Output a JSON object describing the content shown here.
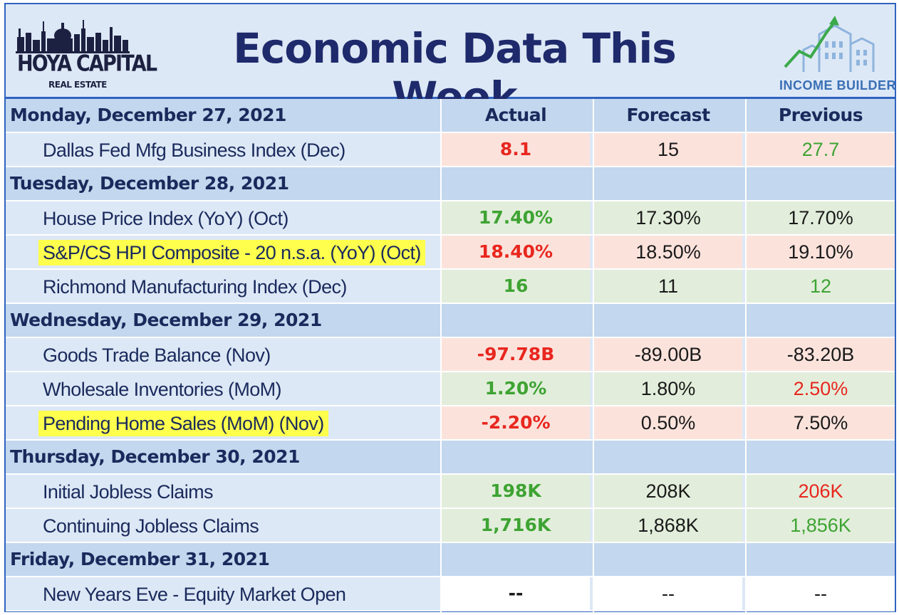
{
  "header": {
    "title": "Economic Data This Week",
    "left_logo": {
      "brand": "HOYA CAPITAL",
      "sub": "REAL ESTATE"
    },
    "right_logo": {
      "label": "INCOME BUILDER"
    }
  },
  "columns": {
    "actual": "Actual",
    "forecast": "Forecast",
    "previous": "Previous"
  },
  "days": [
    {
      "date": "Monday, December 27, 2021",
      "items": [
        {
          "label": "Dallas Fed Mfg Business Index (Dec)",
          "highlight": false,
          "actual": "8.1",
          "forecast": "15",
          "previous": "27.7",
          "actual_color": "red",
          "previous_color": "green",
          "row_bg": "red"
        }
      ]
    },
    {
      "date": "Tuesday, December 28, 2021",
      "items": [
        {
          "label": "House Price Index (YoY) (Oct)",
          "highlight": false,
          "actual": "17.40%",
          "forecast": "17.30%",
          "previous": "17.70%",
          "actual_color": "green",
          "previous_color": "dark",
          "row_bg": "green"
        },
        {
          "label": "S&P/CS HPI Composite - 20 n.s.a. (YoY) (Oct)",
          "highlight": true,
          "actual": "18.40%",
          "forecast": "18.50%",
          "previous": "19.10%",
          "actual_color": "red",
          "previous_color": "dark",
          "row_bg": "red"
        },
        {
          "label": "Richmond Manufacturing Index (Dec)",
          "highlight": false,
          "actual": "16",
          "forecast": "11",
          "previous": "12",
          "actual_color": "green",
          "previous_color": "green",
          "row_bg": "green"
        }
      ]
    },
    {
      "date": "Wednesday, December 29, 2021",
      "items": [
        {
          "label": "Goods Trade Balance (Nov)",
          "highlight": false,
          "actual": "-97.78B",
          "forecast": "-89.00B",
          "previous": "-83.20B",
          "actual_color": "red",
          "previous_color": "dark",
          "row_bg": "red"
        },
        {
          "label": "Wholesale Inventories (MoM)",
          "highlight": false,
          "actual": "1.20%",
          "forecast": "1.80%",
          "previous": "2.50%",
          "actual_color": "green",
          "previous_color": "red",
          "row_bg": "green"
        },
        {
          "label": "Pending Home Sales (MoM) (Nov)",
          "highlight": true,
          "actual": "-2.20%",
          "forecast": "0.50%",
          "previous": "7.50%",
          "actual_color": "red",
          "previous_color": "dark",
          "row_bg": "red"
        }
      ]
    },
    {
      "date": "Thursday, December 30, 2021",
      "items": [
        {
          "label": "Initial Jobless Claims",
          "highlight": false,
          "actual": "198K",
          "forecast": "208K",
          "previous": "206K",
          "actual_color": "green",
          "previous_color": "red",
          "row_bg": "green"
        },
        {
          "label": "Continuing Jobless Claims",
          "highlight": false,
          "actual": "1,716K",
          "forecast": "1,868K",
          "previous": "1,856K",
          "actual_color": "green",
          "previous_color": "green",
          "row_bg": "green"
        }
      ]
    },
    {
      "date": "Friday, December 31, 2021",
      "items": [
        {
          "label": "New Years Eve - Equity Market Open",
          "highlight": false,
          "actual": "--",
          "forecast": "--",
          "previous": "--",
          "actual_color": "dark",
          "previous_color": "dark",
          "row_bg": "white"
        }
      ]
    }
  ]
}
